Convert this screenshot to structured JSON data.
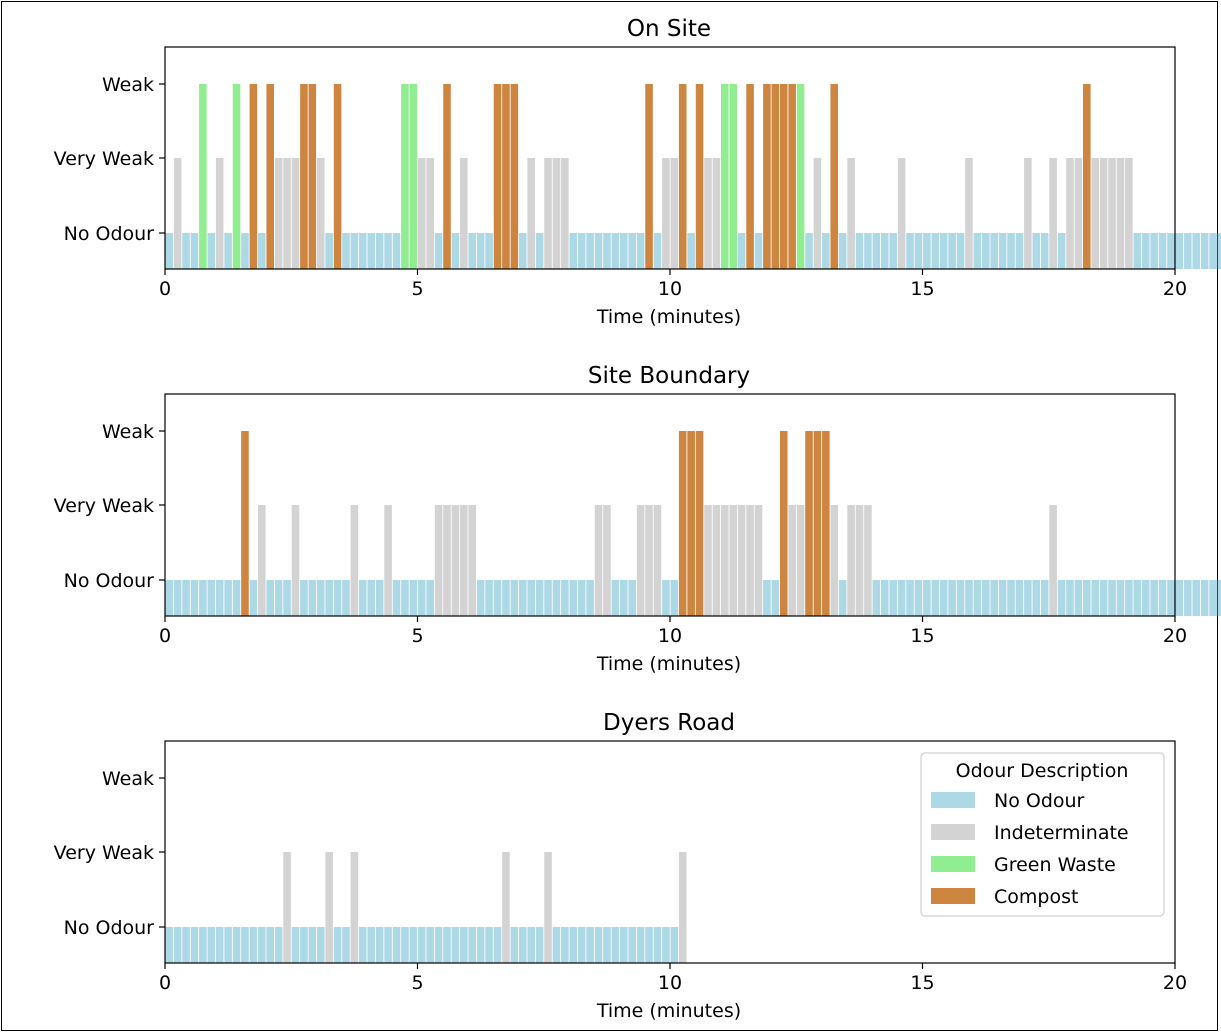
{
  "colors": {
    "no_odour": "#add8e6",
    "indeterminate": "#d3d3d3",
    "green_waste": "#90ee90",
    "compost": "#cd853f"
  },
  "legend": {
    "title": "Odour Description",
    "position": "upper-right of third chart",
    "items": [
      {
        "label": "No Odour",
        "category": "no_odour"
      },
      {
        "label": "Indeterminate",
        "category": "indeterminate"
      },
      {
        "label": "Green Waste",
        "category": "green_waste"
      },
      {
        "label": "Compost",
        "category": "compost"
      }
    ]
  },
  "chart_data": [
    {
      "type": "bar",
      "title": "On Site",
      "xlabel": "Time (minutes)",
      "ylabel": "",
      "xlim": [
        0,
        20
      ],
      "xticks": [
        0,
        5,
        10,
        15,
        20
      ],
      "ylevels": [
        "No Odour",
        "Very Weak",
        "Weak"
      ],
      "bar_width_minutes": 0.15,
      "sample_interval_minutes": 0.1667,
      "codes": "NINNGNINGNCNCIIICCINCNNNNNNNGGIINCNINNNCCCNINIIINNNNNNNNNCNIICNCIIGGNCNCCCCGNINCNINNNNNINNNNNNNINNNNNNINNINIICIIIIINNNNNNNNNNNNNNNNNNNNNNCNNNNIGNNNNNNNNNNNNNNN"
    },
    {
      "type": "bar",
      "title": "Site Boundary",
      "xlabel": "Time (minutes)",
      "ylabel": "",
      "xlim": [
        0,
        20
      ],
      "xticks": [
        0,
        5,
        10,
        15,
        20
      ],
      "ylevels": [
        "No Odour",
        "Very Weak",
        "Weak"
      ],
      "bar_width_minutes": 0.15,
      "sample_interval_minutes": 0.1667,
      "codes": "NNNNNNNNNCNINNNINNNNNNINNNINNNNNIIIIINNNNNNNNNNNNNNIINNNIIINNCCCIIIIIIINNCIICCCINIIINNNNNNNNNNNNNNNNNNNNNINNNNNNNNNNNNNNNNNNNNNNN"
    },
    {
      "type": "bar",
      "title": "Dyers Road",
      "xlabel": "Time (minutes)",
      "ylabel": "",
      "xlim": [
        0,
        20
      ],
      "xticks": [
        0,
        5,
        10,
        15,
        20
      ],
      "ylevels": [
        "No Odour",
        "Very Weak",
        "Weak"
      ],
      "bar_width_minutes": 0.15,
      "sample_interval_minutes": 0.1667,
      "codes": "NNNNNNNNNNNNNNINNNNINNINNNNNNNNNNNNNNNNNINNNNINNNNNNNNNNNNNNNI"
    }
  ]
}
